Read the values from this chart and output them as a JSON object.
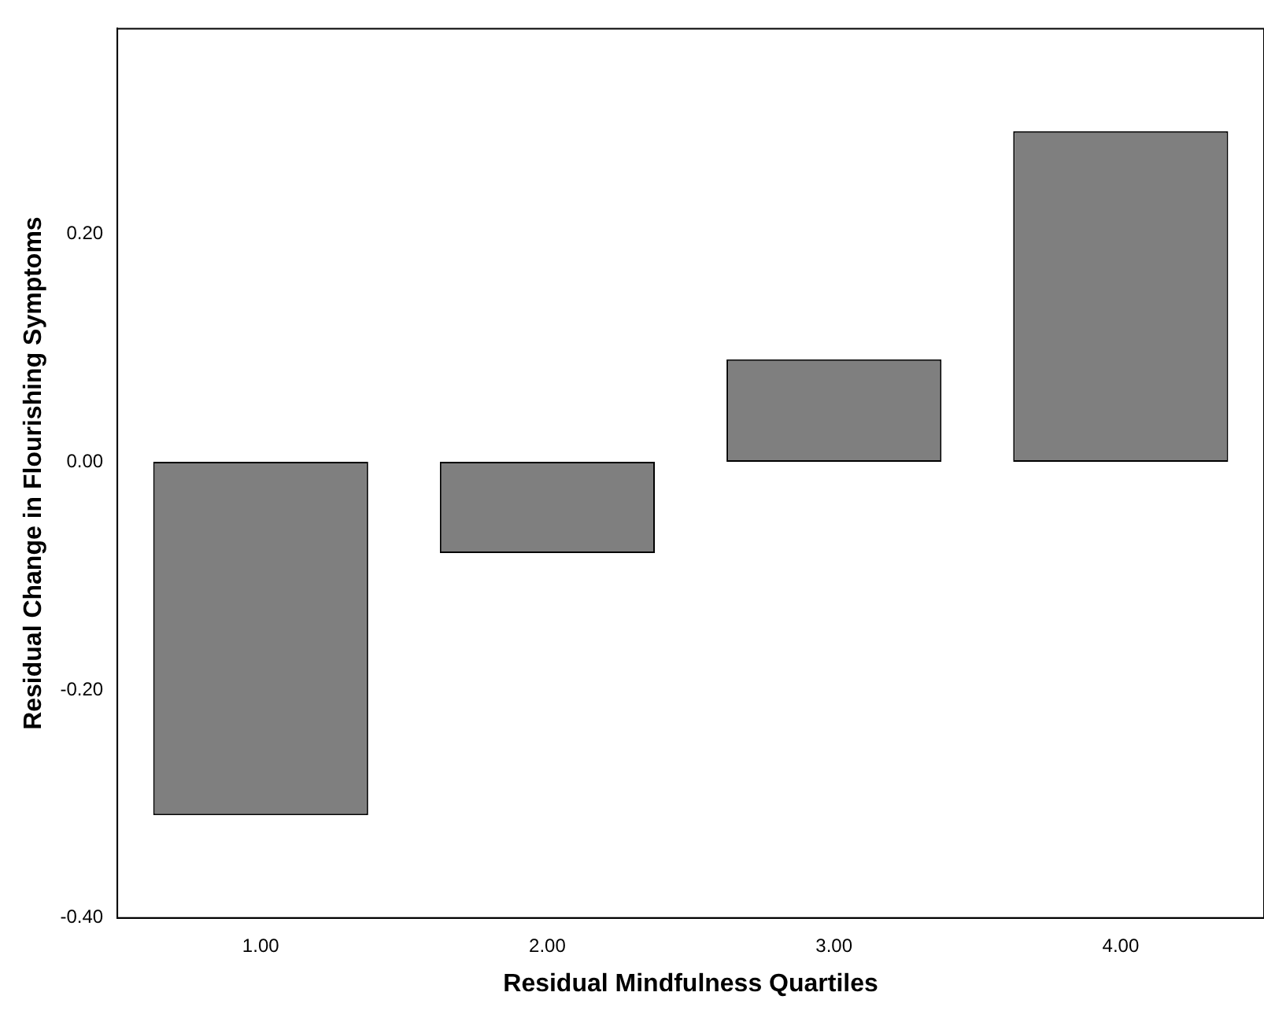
{
  "chart_data": {
    "type": "bar",
    "xlabel": "Residual Mindfulness Quartiles",
    "ylabel": "Residual Change in Flourishing Symptoms",
    "categories": [
      "1.00",
      "2.00",
      "3.00",
      "4.00"
    ],
    "values": [
      -0.31,
      -0.08,
      0.09,
      0.29
    ],
    "color": "#7f7f7f",
    "ylim": [
      -0.4,
      0.38
    ],
    "yticks": [
      {
        "value": -0.4,
        "label": "-0.40"
      },
      {
        "value": -0.2,
        "label": "-0.20"
      },
      {
        "value": 0,
        "label": "0.00"
      },
      {
        "value": 0.2,
        "label": "0.20"
      }
    ],
    "grid": false,
    "legend": false
  }
}
